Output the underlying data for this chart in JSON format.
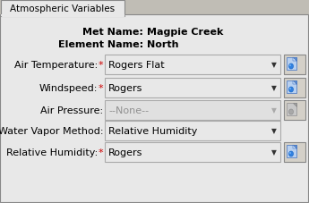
{
  "tab_label": "Atmospheric Variables",
  "met_name_label": "Met Name:",
  "met_name_value": "Magpie Creek",
  "element_name_label": "Element Name:",
  "element_name_value": "North",
  "rows": [
    {
      "label": "Air Temperature:",
      "value": "Rogers Flat",
      "enabled": true,
      "has_icon": true,
      "asterisk": true
    },
    {
      "label": "Windspeed:",
      "value": "Rogers",
      "enabled": true,
      "has_icon": true,
      "asterisk": true
    },
    {
      "label": "Air Pressure:",
      "value": "--None--",
      "enabled": false,
      "has_icon": true,
      "asterisk": false
    },
    {
      "label": "Water Vapor Method:",
      "value": "Relative Humidity",
      "enabled": true,
      "has_icon": false,
      "asterisk": false
    },
    {
      "label": "Relative Humidity:",
      "value": "Rogers",
      "enabled": true,
      "has_icon": true,
      "asterisk": true
    }
  ],
  "bg_color": "#d4d0c8",
  "panel_bg": "#e8e8e8",
  "dropdown_bg_enabled": "#e8e8e8",
  "dropdown_bg_disabled": "#e0e0e0",
  "dropdown_text_enabled": "#000000",
  "dropdown_text_disabled": "#909090",
  "label_color_normal": "#000000",
  "label_color_asterisk": "#cc0000",
  "fig_width": 3.45,
  "fig_height": 2.28,
  "dpi": 100
}
